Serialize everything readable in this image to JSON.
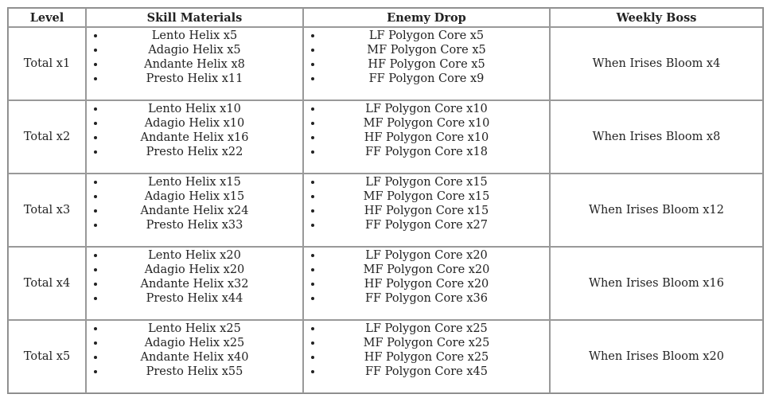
{
  "headers": [
    "Level",
    "Skill Materials",
    "Enemy Drop",
    "Weekly Boss"
  ],
  "rows": [
    {
      "level": "Total x1",
      "skill": [
        "Lento Helix x5",
        "Adagio Helix x5",
        "Andante Helix x8",
        "Presto Helix x11"
      ],
      "enemy": [
        "LF Polygon Core x5",
        "MF Polygon Core x5",
        "HF Polygon Core x5",
        "FF Polygon Core x9"
      ],
      "boss": "When Irises Bloom x4"
    },
    {
      "level": "Total x2",
      "skill": [
        "Lento Helix x10",
        "Adagio Helix x10",
        "Andante Helix x16",
        "Presto Helix x22"
      ],
      "enemy": [
        "LF Polygon Core x10",
        "MF Polygon Core x10",
        "HF Polygon Core x10",
        "FF Polygon Core x18"
      ],
      "boss": "When Irises Bloom x8"
    },
    {
      "level": "Total x3",
      "skill": [
        "Lento Helix x15",
        "Adagio Helix x15",
        "Andante Helix x24",
        "Presto Helix x33"
      ],
      "enemy": [
        "LF Polygon Core x15",
        "MF Polygon Core x15",
        "HF Polygon Core x15",
        "FF Polygon Core x27"
      ],
      "boss": "When Irises Bloom x12"
    },
    {
      "level": "Total x4",
      "skill": [
        "Lento Helix x20",
        "Adagio Helix x20",
        "Andante Helix x32",
        "Presto Helix x44"
      ],
      "enemy": [
        "LF Polygon Core x20",
        "MF Polygon Core x20",
        "HF Polygon Core x20",
        "FF Polygon Core x36"
      ],
      "boss": "When Irises Bloom x16"
    },
    {
      "level": "Total x5",
      "skill": [
        "Lento Helix x25",
        "Adagio Helix x25",
        "Andante Helix x40",
        "Presto Helix x55"
      ],
      "enemy": [
        "LF Polygon Core x25",
        "MF Polygon Core x25",
        "HF Polygon Core x25",
        "FF Polygon Core x45"
      ],
      "boss": "When Irises Bloom x20"
    }
  ]
}
